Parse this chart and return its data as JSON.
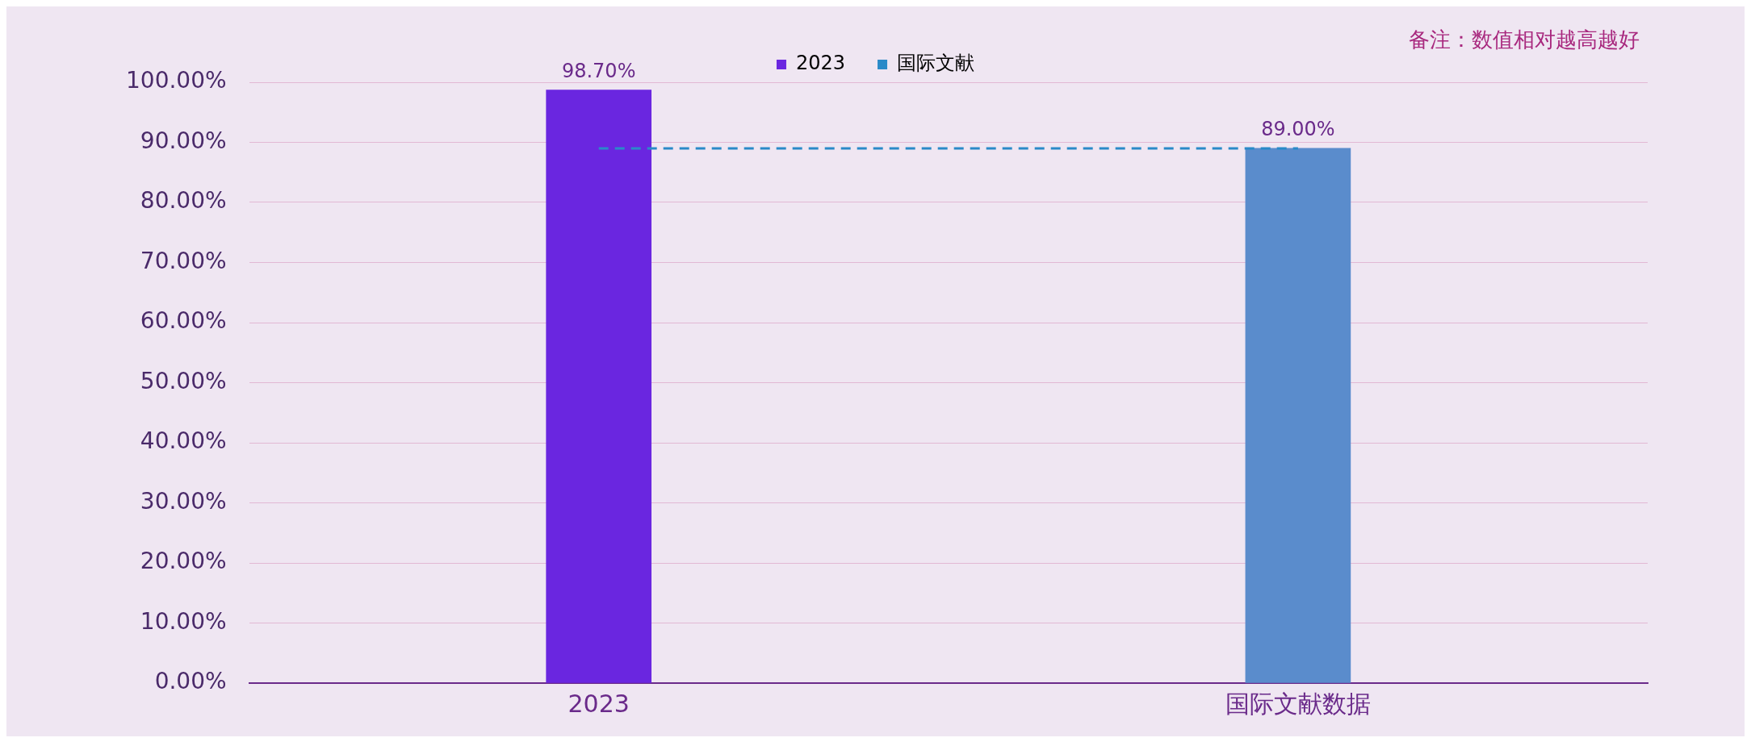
{
  "chart_data": {
    "type": "bar",
    "categories": [
      "2023",
      "国际文献数据"
    ],
    "series": [
      {
        "name": "2023",
        "colors": [
          "#6a26e0",
          "#5a8ccc"
        ],
        "color": "#6a26e0",
        "values": [
          98.7,
          89.0
        ],
        "value_labels": [
          "98.70%",
          "89.00%"
        ]
      },
      {
        "name": "国际文献",
        "type": "line",
        "color": "#2a8ac8",
        "line_style": "dashed",
        "marker": "none",
        "values": [
          89.0,
          89.0
        ]
      }
    ],
    "ylim": [
      0,
      100
    ],
    "yticks": [
      {
        "value": 0,
        "label": "0.00%"
      },
      {
        "value": 10,
        "label": "10.00%"
      },
      {
        "value": 20,
        "label": "20.00%"
      },
      {
        "value": 30,
        "label": "30.00%"
      },
      {
        "value": 40,
        "label": "40.00%"
      },
      {
        "value": 50,
        "label": "50.00%"
      },
      {
        "value": 60,
        "label": "60.00%"
      },
      {
        "value": 70,
        "label": "70.00%"
      },
      {
        "value": 80,
        "label": "80.00%"
      },
      {
        "value": 90,
        "label": "90.00%"
      },
      {
        "value": 100,
        "label": "100.00%"
      }
    ],
    "grid": "y",
    "legend": "top",
    "annotations": [
      "备注：数值相对越高越好"
    ]
  }
}
